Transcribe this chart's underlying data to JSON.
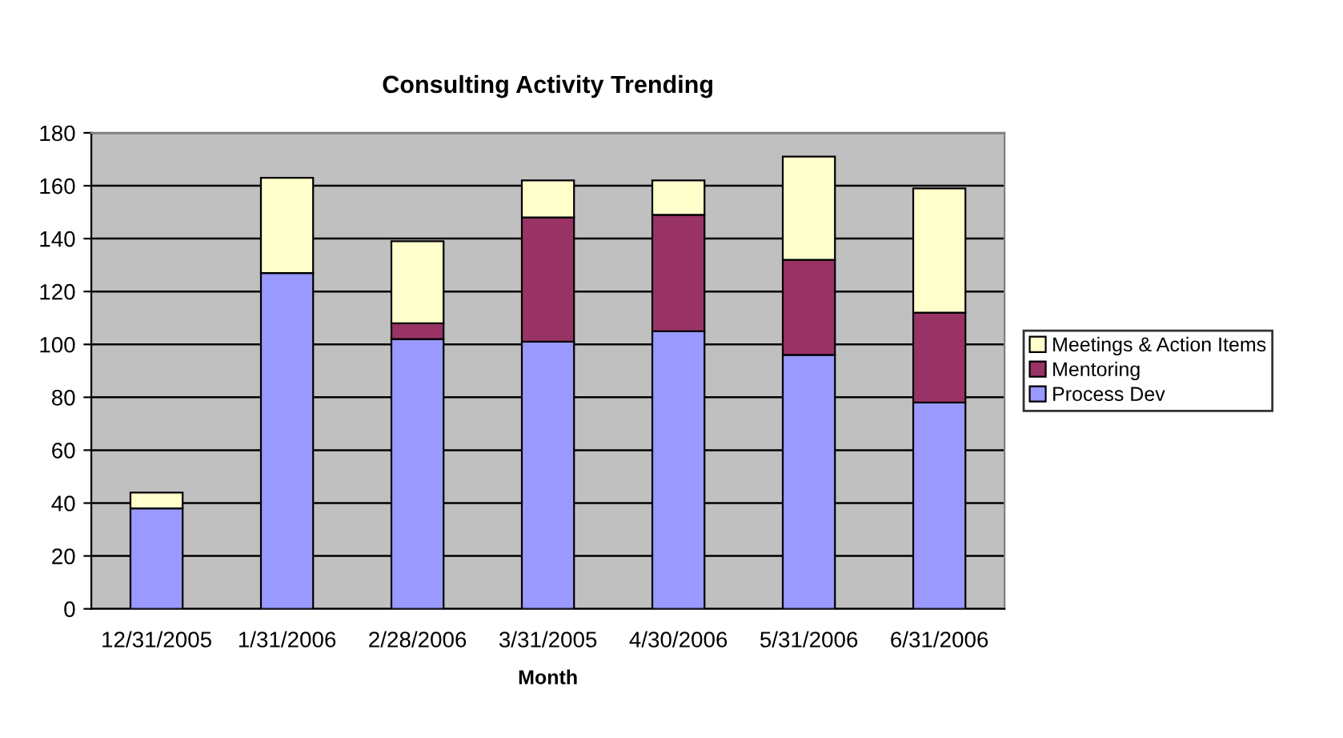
{
  "chart_data": {
    "type": "bar",
    "title": "Consulting Activity Trending",
    "xlabel": "Month",
    "categories": [
      "12/31/2005",
      "1/31/2006",
      "2/28/2006",
      "3/31/2005",
      "4/30/2006",
      "5/31/2006",
      "6/31/2006"
    ],
    "stacked": true,
    "series": [
      {
        "name": "Process Dev",
        "color": "#9999ff",
        "values": [
          38,
          127,
          102,
          101,
          105,
          96,
          78
        ]
      },
      {
        "name": "Mentoring",
        "color": "#993366",
        "values": [
          null,
          null,
          6,
          47,
          44,
          36,
          34
        ]
      },
      {
        "name": "Meetings & Action Items",
        "color": "#ffffcc",
        "values": [
          6,
          36,
          31,
          14,
          13,
          39,
          47
        ]
      }
    ],
    "ylim": [
      0,
      180
    ],
    "yticks": [
      0,
      20,
      40,
      60,
      80,
      100,
      120,
      140,
      160,
      180
    ],
    "grid": "y",
    "legend": "right"
  }
}
